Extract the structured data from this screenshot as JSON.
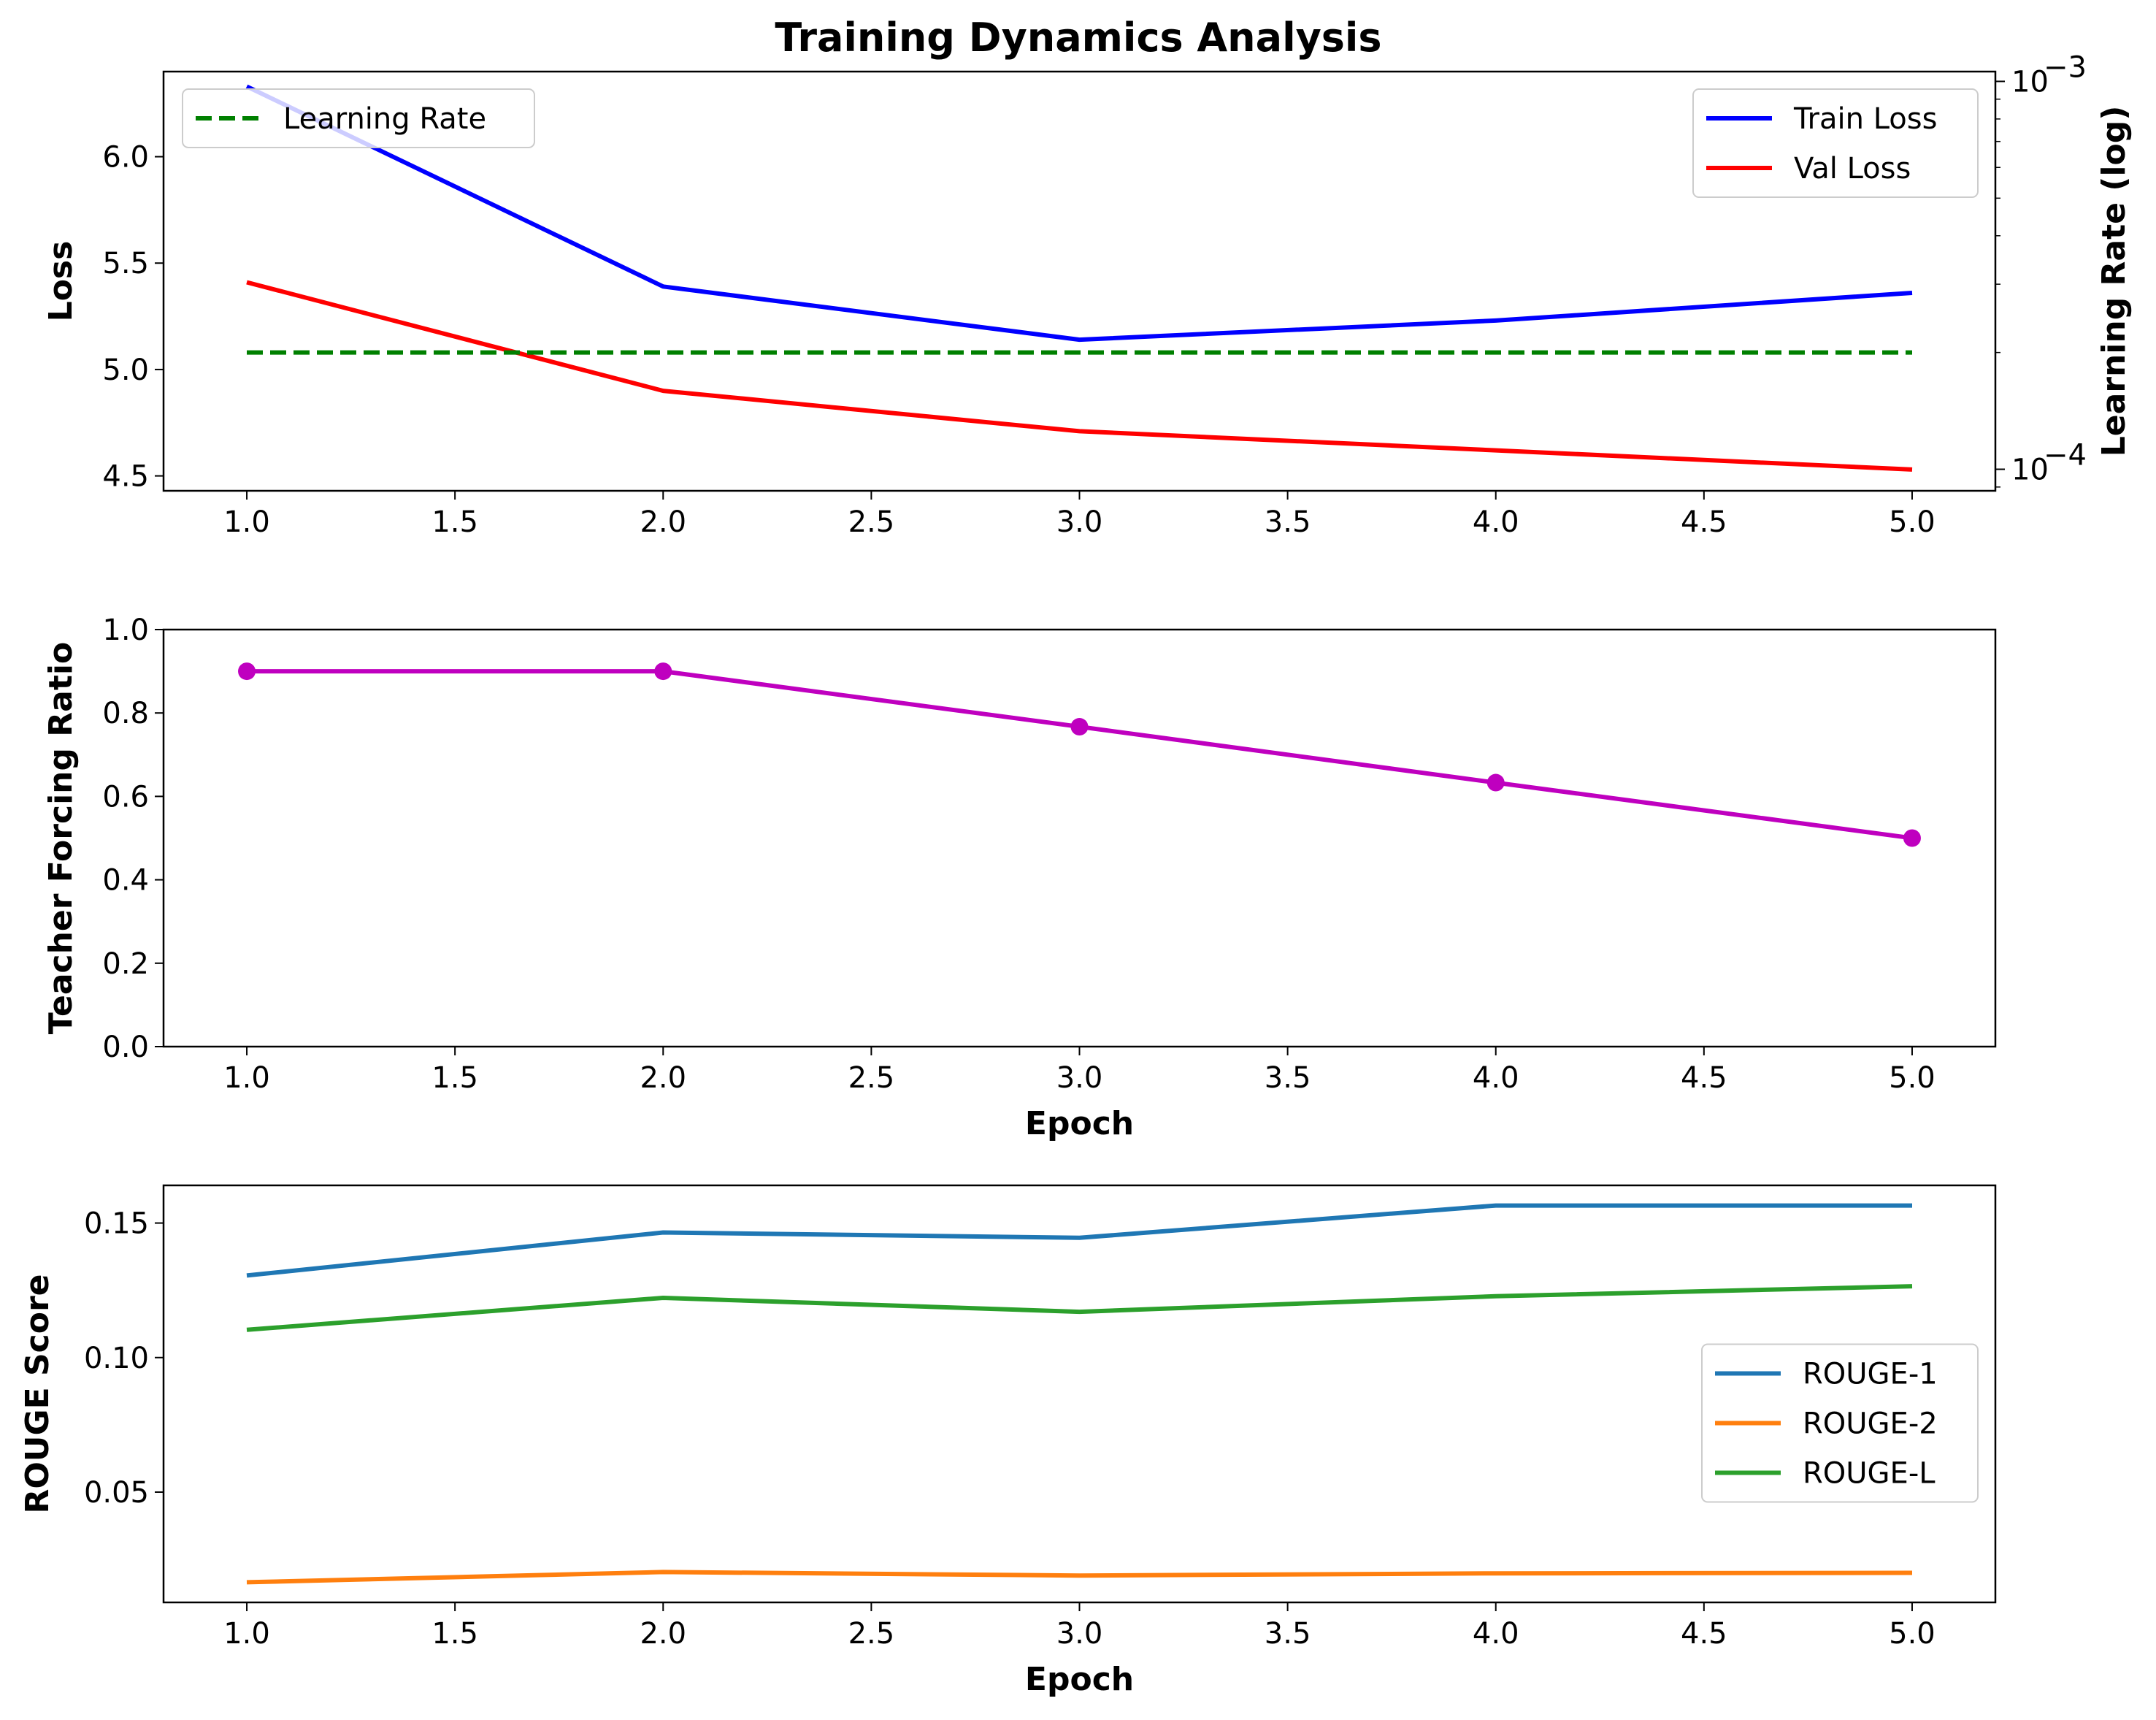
{
  "chart_data": [
    {
      "type": "line",
      "title": "Training Dynamics Analysis",
      "xlabel": "",
      "ylabel": "Loss",
      "y2label": "Learning Rate (log)",
      "x": [
        1,
        2,
        3,
        4,
        5
      ],
      "xlim": [
        0.8,
        5.2
      ],
      "ylim": [
        4.43,
        6.4
      ],
      "xticks": [
        "1.0",
        "1.5",
        "2.0",
        "2.5",
        "3.0",
        "3.5",
        "4.0",
        "4.5",
        "5.0"
      ],
      "yticks": [
        "4.5",
        "5.0",
        "5.5",
        "6.0"
      ],
      "y2_scale": "log",
      "y2lim": [
        8.8e-05,
        0.00106
      ],
      "y2ticks": [
        "10",
        "10"
      ],
      "y2tick_exponents": [
        "−4",
        "−3"
      ],
      "grid": false,
      "series": [
        {
          "name": "Train Loss",
          "axis": "left",
          "color": "#0000ff",
          "style": "solid",
          "values": [
            6.33,
            5.39,
            5.14,
            5.23,
            5.36
          ]
        },
        {
          "name": "Val Loss",
          "axis": "left",
          "color": "#ff0000",
          "style": "solid",
          "values": [
            5.41,
            4.9,
            4.71,
            4.62,
            4.53
          ]
        },
        {
          "name": "Learning Rate",
          "axis": "right",
          "color": "#008000",
          "style": "dashed",
          "values": [
            0.0002,
            0.0002,
            0.0002,
            0.0002,
            0.0002
          ]
        }
      ],
      "legends": [
        {
          "placement": "top-left",
          "entries": [
            "Learning Rate"
          ]
        },
        {
          "placement": "top-right",
          "entries": [
            "Train Loss",
            "Val Loss"
          ]
        }
      ]
    },
    {
      "type": "line",
      "xlabel": "Epoch",
      "ylabel": "Teacher Forcing Ratio",
      "x": [
        1,
        2,
        3,
        4,
        5
      ],
      "xlim": [
        0.8,
        5.2
      ],
      "ylim": [
        0,
        1
      ],
      "xticks": [
        "1.0",
        "1.5",
        "2.0",
        "2.5",
        "3.0",
        "3.5",
        "4.0",
        "4.5",
        "5.0"
      ],
      "yticks": [
        "0.0",
        "0.2",
        "0.4",
        "0.6",
        "0.8",
        "1.0"
      ],
      "grid": false,
      "series": [
        {
          "color": "#bf00bf",
          "style": "solid",
          "markers": true,
          "values": [
            0.9,
            0.9,
            0.767,
            0.633,
            0.5
          ]
        }
      ]
    },
    {
      "type": "line",
      "xlabel": "Epoch",
      "ylabel": "ROUGE Score",
      "x": [
        1,
        2,
        3,
        4,
        5
      ],
      "xlim": [
        0.8,
        5.2
      ],
      "ylim": [
        0.009,
        0.164
      ],
      "xticks": [
        "1.0",
        "1.5",
        "2.0",
        "2.5",
        "3.0",
        "3.5",
        "4.0",
        "4.5",
        "5.0"
      ],
      "yticks": [
        "0.05",
        "0.10",
        "0.15"
      ],
      "grid": false,
      "series": [
        {
          "name": "ROUGE-1",
          "color": "#1f77b4",
          "style": "solid",
          "values": [
            0.1305,
            0.1465,
            0.1445,
            0.1565,
            0.1565
          ]
        },
        {
          "name": "ROUGE-2",
          "color": "#ff7f0e",
          "style": "solid",
          "values": [
            0.0165,
            0.0203,
            0.019,
            0.0198,
            0.02
          ]
        },
        {
          "name": "ROUGE-L",
          "color": "#2ca02c",
          "style": "solid",
          "values": [
            0.1103,
            0.1222,
            0.117,
            0.1228,
            0.1265
          ]
        }
      ],
      "legends": [
        {
          "placement": "center-right",
          "entries": [
            "ROUGE-1",
            "ROUGE-2",
            "ROUGE-L"
          ]
        }
      ]
    }
  ]
}
